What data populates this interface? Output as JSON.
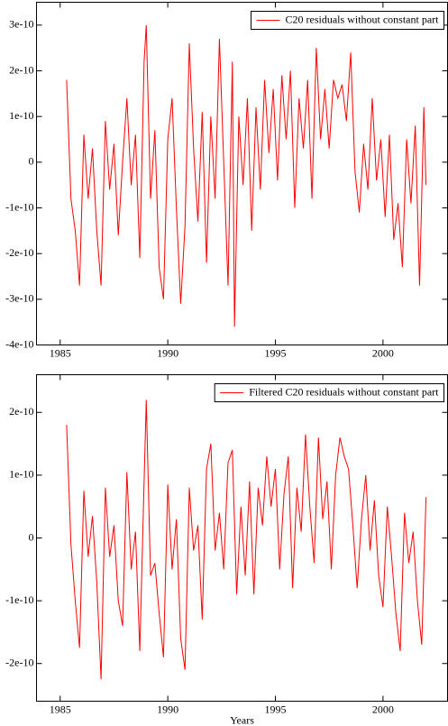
{
  "chart_data": [
    {
      "type": "line",
      "legend": "upper right",
      "x": [
        1985.3,
        1985.5,
        1985.7,
        1985.9,
        1986.1,
        1986.3,
        1986.5,
        1986.7,
        1986.9,
        1987.1,
        1987.3,
        1987.5,
        1987.7,
        1987.9,
        1988.1,
        1988.3,
        1988.5,
        1988.7,
        1988.9,
        1989.0,
        1989.2,
        1989.4,
        1989.6,
        1989.8,
        1990.0,
        1990.2,
        1990.4,
        1990.6,
        1990.8,
        1991.0,
        1991.2,
        1991.4,
        1991.6,
        1991.8,
        1992.0,
        1992.2,
        1992.4,
        1992.6,
        1992.8,
        1993.0,
        1993.1,
        1993.3,
        1993.5,
        1993.7,
        1993.9,
        1994.1,
        1994.3,
        1994.5,
        1994.7,
        1994.9,
        1995.1,
        1995.3,
        1995.5,
        1995.7,
        1995.9,
        1996.1,
        1996.3,
        1996.5,
        1996.7,
        1996.9,
        1997.1,
        1997.3,
        1997.5,
        1997.7,
        1997.9,
        1998.1,
        1998.3,
        1998.5,
        1998.7,
        1998.9,
        1999.1,
        1999.3,
        1999.5,
        1999.7,
        1999.9,
        2000.1,
        2000.3,
        2000.5,
        2000.7,
        2000.9,
        2001.1,
        2001.3,
        2001.5,
        2001.7,
        2001.9,
        2002.0
      ],
      "series": [
        {
          "name": "C20 residuals without constant part",
          "color": "#ff0000",
          "values": [
            1.8e-10,
            -8e-11,
            -1.5e-10,
            -2.7e-10,
            6e-11,
            -8e-11,
            3e-11,
            -1.5e-10,
            -2.7e-10,
            9e-11,
            -6e-11,
            4e-11,
            -1.6e-10,
            0,
            1.4e-10,
            -5e-11,
            6e-11,
            -2.1e-10,
            2.2e-10,
            3e-10,
            -8e-11,
            7e-11,
            -2.3e-10,
            -3e-10,
            5e-11,
            1.4e-10,
            -1e-10,
            -3.1e-10,
            -1.4e-10,
            2.6e-10,
            3e-11,
            -1.3e-10,
            1.1e-10,
            -2.2e-10,
            1e-10,
            -8e-11,
            2.7e-10,
            0,
            -2.7e-10,
            2.2e-10,
            -3.6e-10,
            1e-10,
            -5e-11,
            1.4e-10,
            -1.5e-10,
            1.2e-10,
            -6e-11,
            1.8e-10,
            2e-11,
            1.6e-10,
            -4e-11,
            1.9e-10,
            5e-11,
            2e-10,
            -1e-10,
            1.4e-10,
            3e-11,
            1.8e-10,
            -8e-11,
            2.5e-10,
            5e-11,
            1.6e-10,
            3e-11,
            1.8e-10,
            1.4e-10,
            1.7e-10,
            9e-11,
            2.4e-10,
            -2e-11,
            -1.1e-10,
            4e-11,
            -6e-11,
            1.4e-10,
            -4e-11,
            5e-11,
            -1.2e-10,
            6e-11,
            -1.7e-10,
            -9e-11,
            -2.3e-10,
            5e-11,
            -9e-11,
            8e-11,
            -2.7e-10,
            1.2e-10,
            -5e-11
          ]
        }
      ],
      "xlim": [
        1983.9,
        2003.0
      ],
      "xticks": [
        1985,
        1990,
        1995,
        2000
      ],
      "ylim": [
        -4e-10,
        3.5e-10
      ],
      "yticks": [
        {
          "value": -4e-10,
          "label": "-4e-10"
        },
        {
          "value": -3e-10,
          "label": "-3e-10"
        },
        {
          "value": -2e-10,
          "label": "-2e-10"
        },
        {
          "value": -1e-10,
          "label": "-1e-10"
        },
        0,
        {
          "value": 1e-10,
          "label": "1e-10"
        },
        {
          "value": 2e-10,
          "label": "2e-10"
        },
        {
          "value": 3e-10,
          "label": "3e-10"
        }
      ]
    },
    {
      "type": "line",
      "legend": "upper right",
      "xlabel": "Years",
      "x": [
        1985.3,
        1985.5,
        1985.7,
        1985.9,
        1986.1,
        1986.3,
        1986.5,
        1986.7,
        1986.9,
        1987.1,
        1987.3,
        1987.5,
        1987.7,
        1987.9,
        1988.1,
        1988.3,
        1988.5,
        1988.7,
        1988.9,
        1989.0,
        1989.2,
        1989.4,
        1989.6,
        1989.8,
        1990.0,
        1990.2,
        1990.4,
        1990.6,
        1990.8,
        1991.0,
        1991.2,
        1991.4,
        1991.6,
        1991.8,
        1992.0,
        1992.2,
        1992.4,
        1992.6,
        1992.8,
        1993.0,
        1993.2,
        1993.4,
        1993.6,
        1993.8,
        1994.0,
        1994.2,
        1994.4,
        1994.6,
        1994.8,
        1995.0,
        1995.2,
        1995.4,
        1995.6,
        1995.8,
        1996.0,
        1996.2,
        1996.4,
        1996.6,
        1996.8,
        1997.0,
        1997.2,
        1997.4,
        1997.6,
        1997.8,
        1998.0,
        1998.2,
        1998.4,
        1998.6,
        1998.8,
        1999.0,
        1999.2,
        1999.4,
        1999.6,
        1999.8,
        2000.0,
        2000.2,
        2000.4,
        2000.6,
        2000.8,
        2001.0,
        2001.2,
        2001.4,
        2001.6,
        2001.8,
        2002.0
      ],
      "series": [
        {
          "name": "Filtered C20 residuals without constant part",
          "color": "#ff0000",
          "values": [
            1.8e-10,
            -1e-11,
            -1e-10,
            -1.75e-10,
            7.5e-11,
            -3e-11,
            3.5e-11,
            -7e-11,
            -2.25e-10,
            8e-11,
            -3e-11,
            2e-11,
            -1e-10,
            -1.4e-10,
            1.05e-10,
            -5e-11,
            1e-11,
            -1.8e-10,
            9e-11,
            2.2e-10,
            -6e-11,
            -4e-11,
            -1.2e-10,
            -1.9e-10,
            8.5e-11,
            -5e-11,
            3e-11,
            -1.6e-10,
            -2.1e-10,
            8e-11,
            -2e-11,
            2e-11,
            -1.3e-10,
            1.1e-10,
            1.5e-10,
            -2e-11,
            4e-11,
            -5e-11,
            1.2e-10,
            1.4e-10,
            -9e-11,
            5e-11,
            -6e-11,
            9e-11,
            -9e-11,
            8e-11,
            2e-11,
            1.3e-10,
            5e-11,
            1.1e-10,
            -5e-11,
            7e-11,
            1.3e-10,
            -8e-11,
            8e-11,
            1e-11,
            1.65e-10,
            5e-11,
            -4e-11,
            1.6e-10,
            3e-11,
            9e-11,
            -5e-11,
            1e-10,
            1.6e-10,
            1.3e-10,
            1.1e-10,
            2e-11,
            -8e-11,
            3e-11,
            1e-10,
            -2e-11,
            6e-11,
            -6e-11,
            -1.1e-10,
            5e-11,
            -3e-11,
            -1.2e-10,
            -1.8e-10,
            4e-11,
            -4e-11,
            1e-11,
            -1e-10,
            -1.7e-10,
            6.5e-11
          ]
        }
      ],
      "xlim": [
        1983.9,
        2003.0
      ],
      "xticks": [
        1985,
        1990,
        1995,
        2000
      ],
      "ylim": [
        -2.6e-10,
        2.6e-10
      ],
      "yticks": [
        {
          "value": -2e-10,
          "label": "-2e-10"
        },
        {
          "value": -1e-10,
          "label": "-1e-10"
        },
        0,
        {
          "value": 1e-10,
          "label": "1e-10"
        },
        {
          "value": 2e-10,
          "label": "2e-10"
        }
      ]
    }
  ]
}
